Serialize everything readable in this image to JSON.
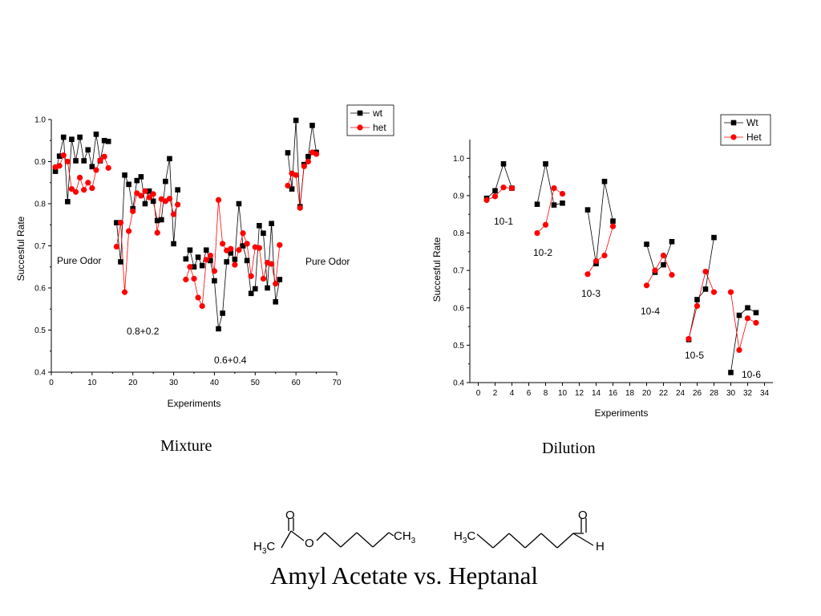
{
  "slide": {
    "caption_left": "Mixture",
    "caption_right": "Dilution",
    "title": "Amyl Acetate vs. Heptanal"
  },
  "chart_data": [
    {
      "type": "line",
      "title": "",
      "xlabel": "Experiments",
      "ylabel": "Succesful Rate",
      "xlim": [
        0,
        70
      ],
      "ylim": [
        0.4,
        1.0
      ],
      "xticks": [
        "0",
        "10",
        "20",
        "30",
        "40",
        "50",
        "60",
        "70"
      ],
      "yticks": [
        "0.4",
        "0.5",
        "0.6",
        "0.7",
        "0.8",
        "0.9",
        "1.0"
      ],
      "legend_position": "top-right",
      "colors": {
        "wt": "#000000",
        "het": "#ff0000"
      },
      "annotations": [
        "Pure Odor",
        "0.8+0.2",
        "0.6+0.4",
        "Pure Odor"
      ],
      "series": [
        {
          "name": "wt",
          "marker": "square",
          "segments": [
            {
              "x": [
                1,
                2,
                3,
                4,
                5,
                6,
                7,
                8,
                9,
                10,
                11,
                12,
                13,
                14
              ],
              "y": [
                0.877,
                0.913,
                0.958,
                0.805,
                0.953,
                0.902,
                0.958,
                0.902,
                0.928,
                0.888,
                0.965,
                0.902,
                0.95,
                0.948
              ]
            },
            {
              "x": [
                16,
                17,
                18,
                19,
                20,
                21,
                22,
                23,
                24,
                25,
                26,
                27,
                28,
                29,
                30,
                31
              ],
              "y": [
                0.755,
                0.662,
                0.868,
                0.846,
                0.788,
                0.855,
                0.864,
                0.8,
                0.83,
                0.806,
                0.76,
                0.762,
                0.853,
                0.907,
                0.705,
                0.833
              ]
            },
            {
              "x": [
                33,
                34,
                35,
                36,
                37,
                38,
                39,
                40,
                41,
                42,
                43,
                44,
                45,
                46,
                47,
                48,
                49,
                50,
                51,
                52,
                53,
                54,
                55,
                56
              ],
              "y": [
                0.669,
                0.69,
                0.65,
                0.673,
                0.653,
                0.69,
                0.665,
                0.617,
                0.503,
                0.54,
                0.662,
                0.683,
                0.668,
                0.8,
                0.7,
                0.665,
                0.587,
                0.598,
                0.748,
                0.73,
                0.6,
                0.753,
                0.567,
                0.62
              ]
            },
            {
              "x": [
                58,
                59,
                60,
                61,
                62,
                63,
                64,
                65
              ],
              "y": [
                0.921,
                0.835,
                0.998,
                0.793,
                0.893,
                0.912,
                0.986,
                0.922
              ]
            }
          ]
        },
        {
          "name": "het",
          "marker": "circle",
          "segments": [
            {
              "x": [
                1,
                2,
                3,
                4,
                5,
                6,
                7,
                8,
                9,
                10,
                11,
                12,
                13,
                14
              ],
              "y": [
                0.887,
                0.89,
                0.915,
                0.9,
                0.835,
                0.828,
                0.862,
                0.833,
                0.85,
                0.837,
                0.88,
                0.903,
                0.912,
                0.885
              ]
            },
            {
              "x": [
                16,
                17,
                18,
                19,
                20,
                21,
                22,
                23,
                24,
                25,
                26,
                27,
                28,
                29,
                30,
                31
              ],
              "y": [
                0.698,
                0.755,
                0.59,
                0.735,
                0.782,
                0.825,
                0.819,
                0.83,
                0.815,
                0.823,
                0.731,
                0.811,
                0.806,
                0.812,
                0.775,
                0.798
              ]
            },
            {
              "x": [
                33,
                34,
                35,
                36,
                37,
                38,
                39,
                40,
                41,
                42,
                43,
                44,
                45,
                46,
                47,
                48,
                49,
                50,
                51,
                52,
                53,
                54,
                55,
                56
              ],
              "y": [
                0.62,
                0.65,
                0.622,
                0.577,
                0.557,
                0.667,
                0.677,
                0.64,
                0.809,
                0.705,
                0.689,
                0.693,
                0.655,
                0.69,
                0.73,
                0.705,
                0.628,
                0.697,
                0.695,
                0.622,
                0.66,
                0.657,
                0.61,
                0.702
              ]
            },
            {
              "x": [
                58,
                59,
                60,
                61,
                62,
                63,
                64,
                65
              ],
              "y": [
                0.843,
                0.872,
                0.868,
                0.79,
                0.889,
                0.9,
                0.922,
                0.918
              ]
            }
          ]
        }
      ]
    },
    {
      "type": "line",
      "title": "",
      "xlabel": "Experiments",
      "ylabel": "Succesful Rate",
      "xlim": [
        -1,
        35
      ],
      "ylim": [
        0.4,
        1.05
      ],
      "xticks": [
        "0",
        "2",
        "4",
        "6",
        "8",
        "10",
        "12",
        "14",
        "16",
        "18",
        "20",
        "22",
        "24",
        "26",
        "28",
        "30",
        "32",
        "34"
      ],
      "yticks": [
        "0.4",
        "0.5",
        "0.6",
        "0.7",
        "0.8",
        "0.9",
        "1.0"
      ],
      "legend_position": "top-right",
      "colors": {
        "Wt": "#000000",
        "Het": "#ff0000"
      },
      "annotations": [
        "10-1",
        "10-2",
        "10-3",
        "10-4",
        "10-5",
        "10-6"
      ],
      "series": [
        {
          "name": "Wt",
          "marker": "square",
          "segments": [
            {
              "x": [
                1,
                2,
                3,
                4
              ],
              "y": [
                0.893,
                0.913,
                0.985,
                0.92
              ]
            },
            {
              "x": [
                7,
                8,
                9,
                10
              ],
              "y": [
                0.877,
                0.985,
                0.875,
                0.88
              ]
            },
            {
              "x": [
                13,
                14,
                15,
                16
              ],
              "y": [
                0.862,
                0.718,
                0.938,
                0.832
              ]
            },
            {
              "x": [
                20,
                21,
                22,
                23
              ],
              "y": [
                0.77,
                0.695,
                0.715,
                0.777
              ]
            },
            {
              "x": [
                25,
                26,
                27,
                28
              ],
              "y": [
                0.515,
                0.622,
                0.65,
                0.788
              ]
            },
            {
              "x": [
                30,
                31,
                32,
                33
              ],
              "y": [
                0.427,
                0.58,
                0.6,
                0.587
              ]
            }
          ]
        },
        {
          "name": "Het",
          "marker": "circle",
          "segments": [
            {
              "x": [
                1,
                2,
                3,
                4
              ],
              "y": [
                0.888,
                0.898,
                0.922,
                0.92
              ]
            },
            {
              "x": [
                7,
                8,
                9,
                10
              ],
              "y": [
                0.8,
                0.822,
                0.92,
                0.905
              ]
            },
            {
              "x": [
                13,
                14,
                15,
                16
              ],
              "y": [
                0.69,
                0.725,
                0.74,
                0.818
              ]
            },
            {
              "x": [
                20,
                21,
                22,
                23
              ],
              "y": [
                0.66,
                0.7,
                0.74,
                0.688
              ]
            },
            {
              "x": [
                25,
                26,
                27,
                28
              ],
              "y": [
                0.517,
                0.605,
                0.697,
                0.642
              ]
            },
            {
              "x": [
                30,
                31,
                32,
                33
              ],
              "y": [
                0.642,
                0.487,
                0.572,
                0.56
              ]
            }
          ]
        }
      ]
    }
  ],
  "molecules": [
    {
      "name": "amyl-acetate",
      "labels": {
        "carbonyl_o": "O",
        "ester_o": "O",
        "left_group": "H3C",
        "right_group": "CH3"
      }
    },
    {
      "name": "heptanal",
      "labels": {
        "carbonyl_o": "O",
        "aldehyde_h": "H",
        "left_group": "H3C"
      }
    }
  ]
}
